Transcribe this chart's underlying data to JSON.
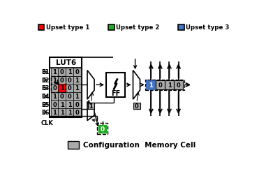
{
  "legend": [
    {
      "label": "Upset type 1",
      "color": "#ff0000"
    },
    {
      "label": "Upset type 2",
      "color": "#22aa22"
    },
    {
      "label": "Upset type 3",
      "color": "#4472c4"
    }
  ],
  "lut_label": "LUT6",
  "lut_data": [
    [
      1,
      0,
      1,
      0
    ],
    [
      1,
      0,
      0,
      1
    ],
    [
      0,
      1,
      0,
      1
    ],
    [
      1,
      0,
      0,
      1
    ],
    [
      0,
      1,
      1,
      0
    ],
    [
      1,
      1,
      1,
      0
    ]
  ],
  "input_labels": [
    "E1",
    "E2",
    "E3",
    "E4",
    "E5",
    "E6",
    "CLK"
  ],
  "ff_label": "FF",
  "cell_label": "Configuration  Memory Cell",
  "output_bits": [
    1,
    0,
    1,
    0
  ],
  "gray": "#aaaaaa",
  "bg": "#ffffff",
  "red_cell_row": 2,
  "red_cell_col": 1
}
